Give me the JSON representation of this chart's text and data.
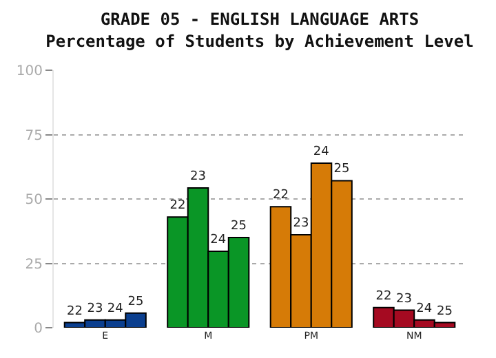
{
  "chart_data": {
    "type": "bar",
    "title": "GRADE 05 - ENGLISH LANGUAGE ARTS",
    "subtitle": "Percentage of Students by Achievement Level",
    "categories": [
      "E",
      "M",
      "PM",
      "NM"
    ],
    "series": [
      {
        "name": "22",
        "colors": [
          "#0b3f8f",
          "#0a9626",
          "#d67b07",
          "#a50a21"
        ],
        "values": [
          2,
          43,
          47,
          7.8
        ]
      },
      {
        "name": "23",
        "colors": [
          "#0b3f8f",
          "#0a9626",
          "#d67b07",
          "#a50a21"
        ],
        "values": [
          3,
          54.3,
          36.1,
          6.8
        ]
      },
      {
        "name": "24",
        "colors": [
          "#0b3f8f",
          "#0a9626",
          "#d67b07",
          "#a50a21"
        ],
        "values": [
          3,
          29.7,
          63.9,
          3
        ]
      },
      {
        "name": "25",
        "colors": [
          "#0b3f8f",
          "#0a9626",
          "#d67b07",
          "#a50a21"
        ],
        "values": [
          5.7,
          35,
          57.1,
          2
        ]
      }
    ],
    "ylim": [
      0,
      100
    ],
    "yticks": [
      0,
      25,
      50,
      75,
      100
    ],
    "grid": "y"
  }
}
